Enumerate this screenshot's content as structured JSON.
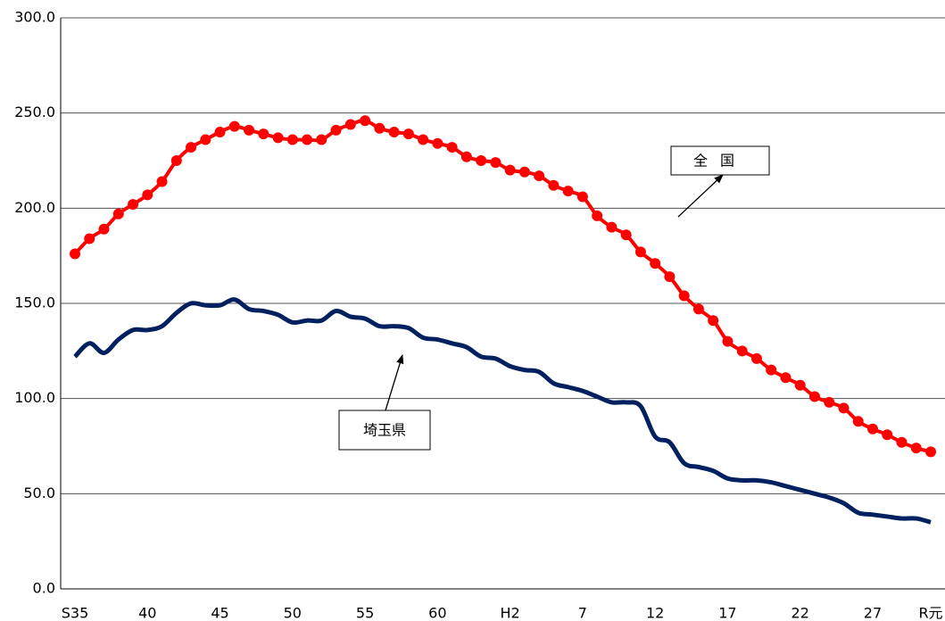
{
  "chart_data": {
    "type": "line",
    "categories": [
      "S35",
      null,
      null,
      null,
      null,
      "40",
      null,
      null,
      null,
      null,
      "45",
      null,
      null,
      null,
      null,
      "50",
      null,
      null,
      null,
      null,
      "55",
      null,
      null,
      null,
      null,
      "60",
      null,
      null,
      null,
      null,
      "H2",
      null,
      null,
      null,
      null,
      "7",
      null,
      null,
      null,
      null,
      "12",
      null,
      null,
      null,
      null,
      "17",
      null,
      null,
      null,
      null,
      "22",
      null,
      null,
      null,
      null,
      "27",
      null,
      null,
      null,
      "R元"
    ],
    "series": [
      {
        "name": "全国",
        "color": "#ff0000",
        "markers": true,
        "values": [
          176,
          184,
          189,
          197,
          202,
          207,
          214,
          225,
          232,
          236,
          240,
          243,
          241,
          239,
          237,
          236,
          236,
          236,
          241,
          244,
          246,
          242,
          240,
          239,
          236,
          234,
          232,
          227,
          225,
          224,
          220,
          219,
          217,
          212,
          209,
          206,
          196,
          190,
          186,
          177,
          171,
          164,
          154,
          147,
          141,
          130,
          125,
          121,
          115,
          111,
          107,
          101,
          98,
          95,
          88,
          84,
          81,
          77,
          74,
          72
        ]
      },
      {
        "name": "埼玉県",
        "color": "#002060",
        "markers": false,
        "values": [
          122,
          129,
          124,
          131,
          136,
          136,
          138,
          145,
          150,
          149,
          149,
          152,
          147,
          146,
          144,
          140,
          141,
          141,
          146,
          143,
          142,
          138,
          138,
          137,
          132,
          131,
          129,
          127,
          122,
          121,
          117,
          115,
          114,
          108,
          106,
          104,
          101,
          98,
          98,
          96,
          80,
          77,
          66,
          64,
          62,
          58,
          57,
          57,
          56,
          54,
          52,
          50,
          48,
          45,
          40,
          39,
          38,
          37,
          37,
          35
        ]
      }
    ],
    "ylim": [
      0,
      300
    ],
    "yticks": [
      {
        "value": 0,
        "label": "0.0"
      },
      {
        "value": 50,
        "label": "50.0"
      },
      {
        "value": 100,
        "label": "100.0"
      },
      {
        "value": 150,
        "label": "150.0"
      },
      {
        "value": 200,
        "label": "200.0"
      },
      {
        "value": 250,
        "label": "250.0"
      },
      {
        "value": 300,
        "label": "300.0"
      }
    ],
    "grid": true
  }
}
